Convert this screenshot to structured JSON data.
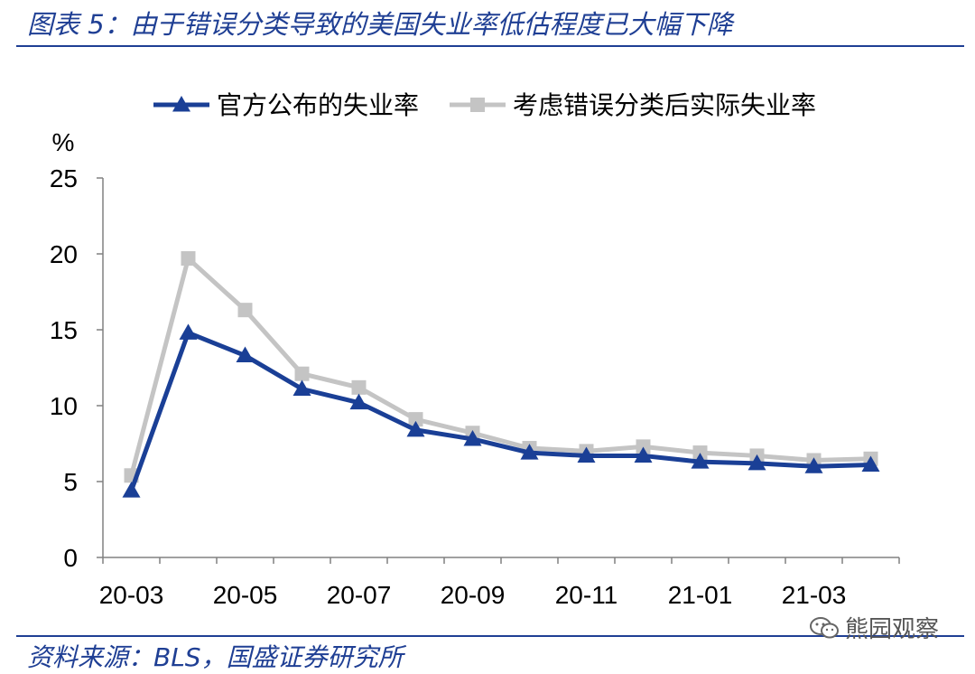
{
  "figure": {
    "title": "图表 5：由于错误分类导致的美国失业率低估程度已大幅下降",
    "source": "资料来源：BLS，国盛证券研究所",
    "watermark": "熊园观察",
    "watermark_icon": "wechat-icon"
  },
  "colors": {
    "official": "#1a3f96",
    "adjusted": "#c4c4c4",
    "brand": "#1f3f94"
  },
  "chart_data": {
    "type": "line",
    "title": "",
    "xlabel": "",
    "ylabel": "%",
    "ylim": [
      0,
      25
    ],
    "yticks": [
      "0",
      "5",
      "10",
      "15",
      "20",
      "25"
    ],
    "xtick_labels": [
      "20-03",
      "20-05",
      "20-07",
      "20-09",
      "20-11",
      "21-01",
      "21-03"
    ],
    "x": [
      "20-03",
      "20-04",
      "20-05",
      "20-06",
      "20-07",
      "20-08",
      "20-09",
      "20-10",
      "20-11",
      "20-12",
      "21-01",
      "21-02",
      "21-03",
      "21-04"
    ],
    "series": [
      {
        "name": "官方公布的失业率",
        "marker": "triangle",
        "values": [
          4.4,
          14.8,
          13.3,
          11.1,
          10.2,
          8.4,
          7.8,
          6.9,
          6.7,
          6.7,
          6.3,
          6.2,
          6.0,
          6.1
        ]
      },
      {
        "name": "考虑错误分类后实际失业率",
        "marker": "square",
        "values": [
          5.4,
          19.7,
          16.3,
          12.1,
          11.2,
          9.1,
          8.2,
          7.2,
          7.0,
          7.3,
          6.9,
          6.7,
          6.4,
          6.5
        ]
      }
    ],
    "legend": "top",
    "grid": false
  }
}
